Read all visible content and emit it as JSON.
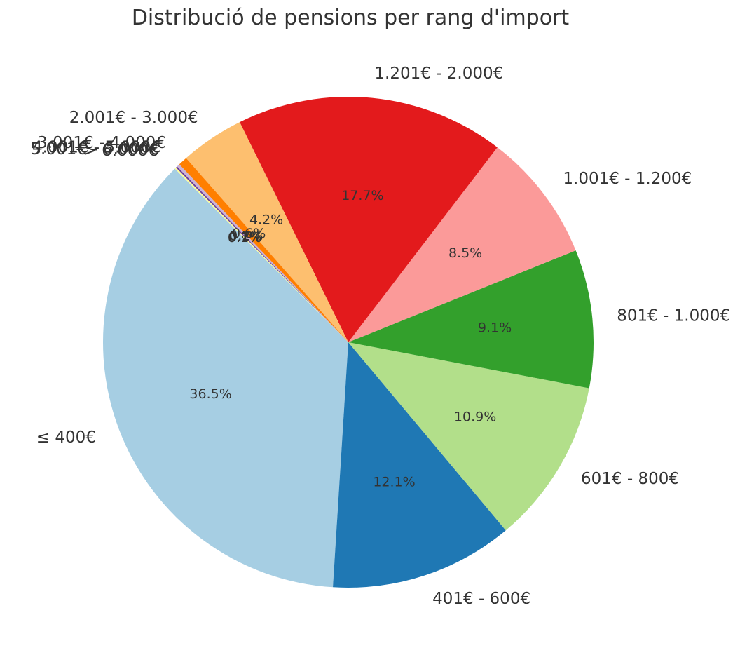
{
  "chart_data": {
    "type": "pie",
    "title": "Distribució de pensions per rang d'import",
    "categories": [
      "≤ 400€",
      "401€ - 600€",
      "601€ - 800€",
      "801€ - 1.000€",
      "1.001€ - 1.200€",
      "1.201€ - 2.000€",
      "2.001€ - 3.000€",
      "3.001€ - 4.000€",
      "4.001€ - 5.000€",
      "5.001€ - 6.000€",
      "> 6.000€"
    ],
    "values": [
      36.5,
      12.1,
      10.9,
      9.1,
      8.5,
      17.7,
      4.2,
      0.6,
      0.2,
      0.1,
      0.1
    ],
    "value_labels": [
      "36.5%",
      "12.1%",
      "10.9%",
      "9.1%",
      "8.5%",
      "17.7%",
      "4.2%",
      "0.6%",
      "0.2%",
      "0.1%",
      "0.1%"
    ],
    "colors": [
      "#a6cee3",
      "#1f78b4",
      "#b2df8a",
      "#33a02c",
      "#fb9a99",
      "#e31a1c",
      "#fdbf6f",
      "#ff7f00",
      "#cab2d6",
      "#6a3d9a",
      "#ffff99"
    ],
    "start_angle_deg": 135,
    "direction": "counterclockwise",
    "legend": "none"
  }
}
